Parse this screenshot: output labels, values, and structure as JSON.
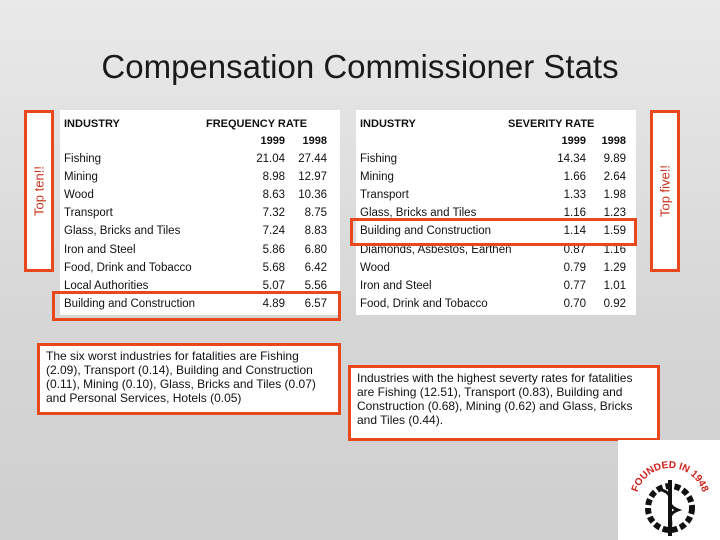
{
  "title": "Compensation Commissioner Stats",
  "left_label": "Top ten!!",
  "right_label": "Top five!!",
  "frequency_table": {
    "headers": [
      "INDUSTRY",
      "FREQUENCY RATE",
      "1999",
      "1998"
    ],
    "rows": [
      [
        "Fishing",
        "21.04",
        "27.44"
      ],
      [
        "Mining",
        "8.98",
        "12.97"
      ],
      [
        "Wood",
        "8.63",
        "10.36"
      ],
      [
        "Transport",
        "7.32",
        "8.75"
      ],
      [
        "Glass, Bricks and Tiles",
        "7.24",
        "8.83"
      ],
      [
        "Iron and Steel",
        "5.86",
        "6.80"
      ],
      [
        "Food, Drink and Tobacco",
        "5.68",
        "6.42"
      ],
      [
        "Local Authorities",
        "5.07",
        "5.56"
      ],
      [
        "Building and Construction",
        "4.89",
        "6.57"
      ]
    ]
  },
  "severity_table": {
    "headers": [
      "INDUSTRY",
      "SEVERITY RATE",
      "1999",
      "1998"
    ],
    "rows": [
      [
        "Fishing",
        "14.34",
        "9.89"
      ],
      [
        "Mining",
        "1.66",
        "2.64"
      ],
      [
        "Transport",
        "1.33",
        "1.98"
      ],
      [
        "Glass, Bricks and Tiles",
        "1.16",
        "1.23"
      ],
      [
        "Building and Construction",
        "1.14",
        "1.59"
      ],
      [
        "Diamonds, Asbestos, Earthen",
        "0.87",
        "1.16"
      ],
      [
        "Wood",
        "0.79",
        "1.29"
      ],
      [
        "Iron and Steel",
        "0.77",
        "1.01"
      ],
      [
        "Food, Drink and Tobacco",
        "0.70",
        "0.92"
      ]
    ]
  },
  "fatalities_note": "The six worst industries for fatalities are Fishing (2.09), Transport (0.14), Building and Construction (0.11), Mining (0.10), Glass, Bricks and Tiles (0.07) and Personal Services, Hotels (0.05)",
  "severity_note": "Industries with the highest severty rates for fatalities are Fishing (12.51), Transport (0.83), Building and Construction (0.68), Mining (0.62) and Glass, Bricks and Tiles (0.44).",
  "logo_text": "FOUNDED IN 1948"
}
